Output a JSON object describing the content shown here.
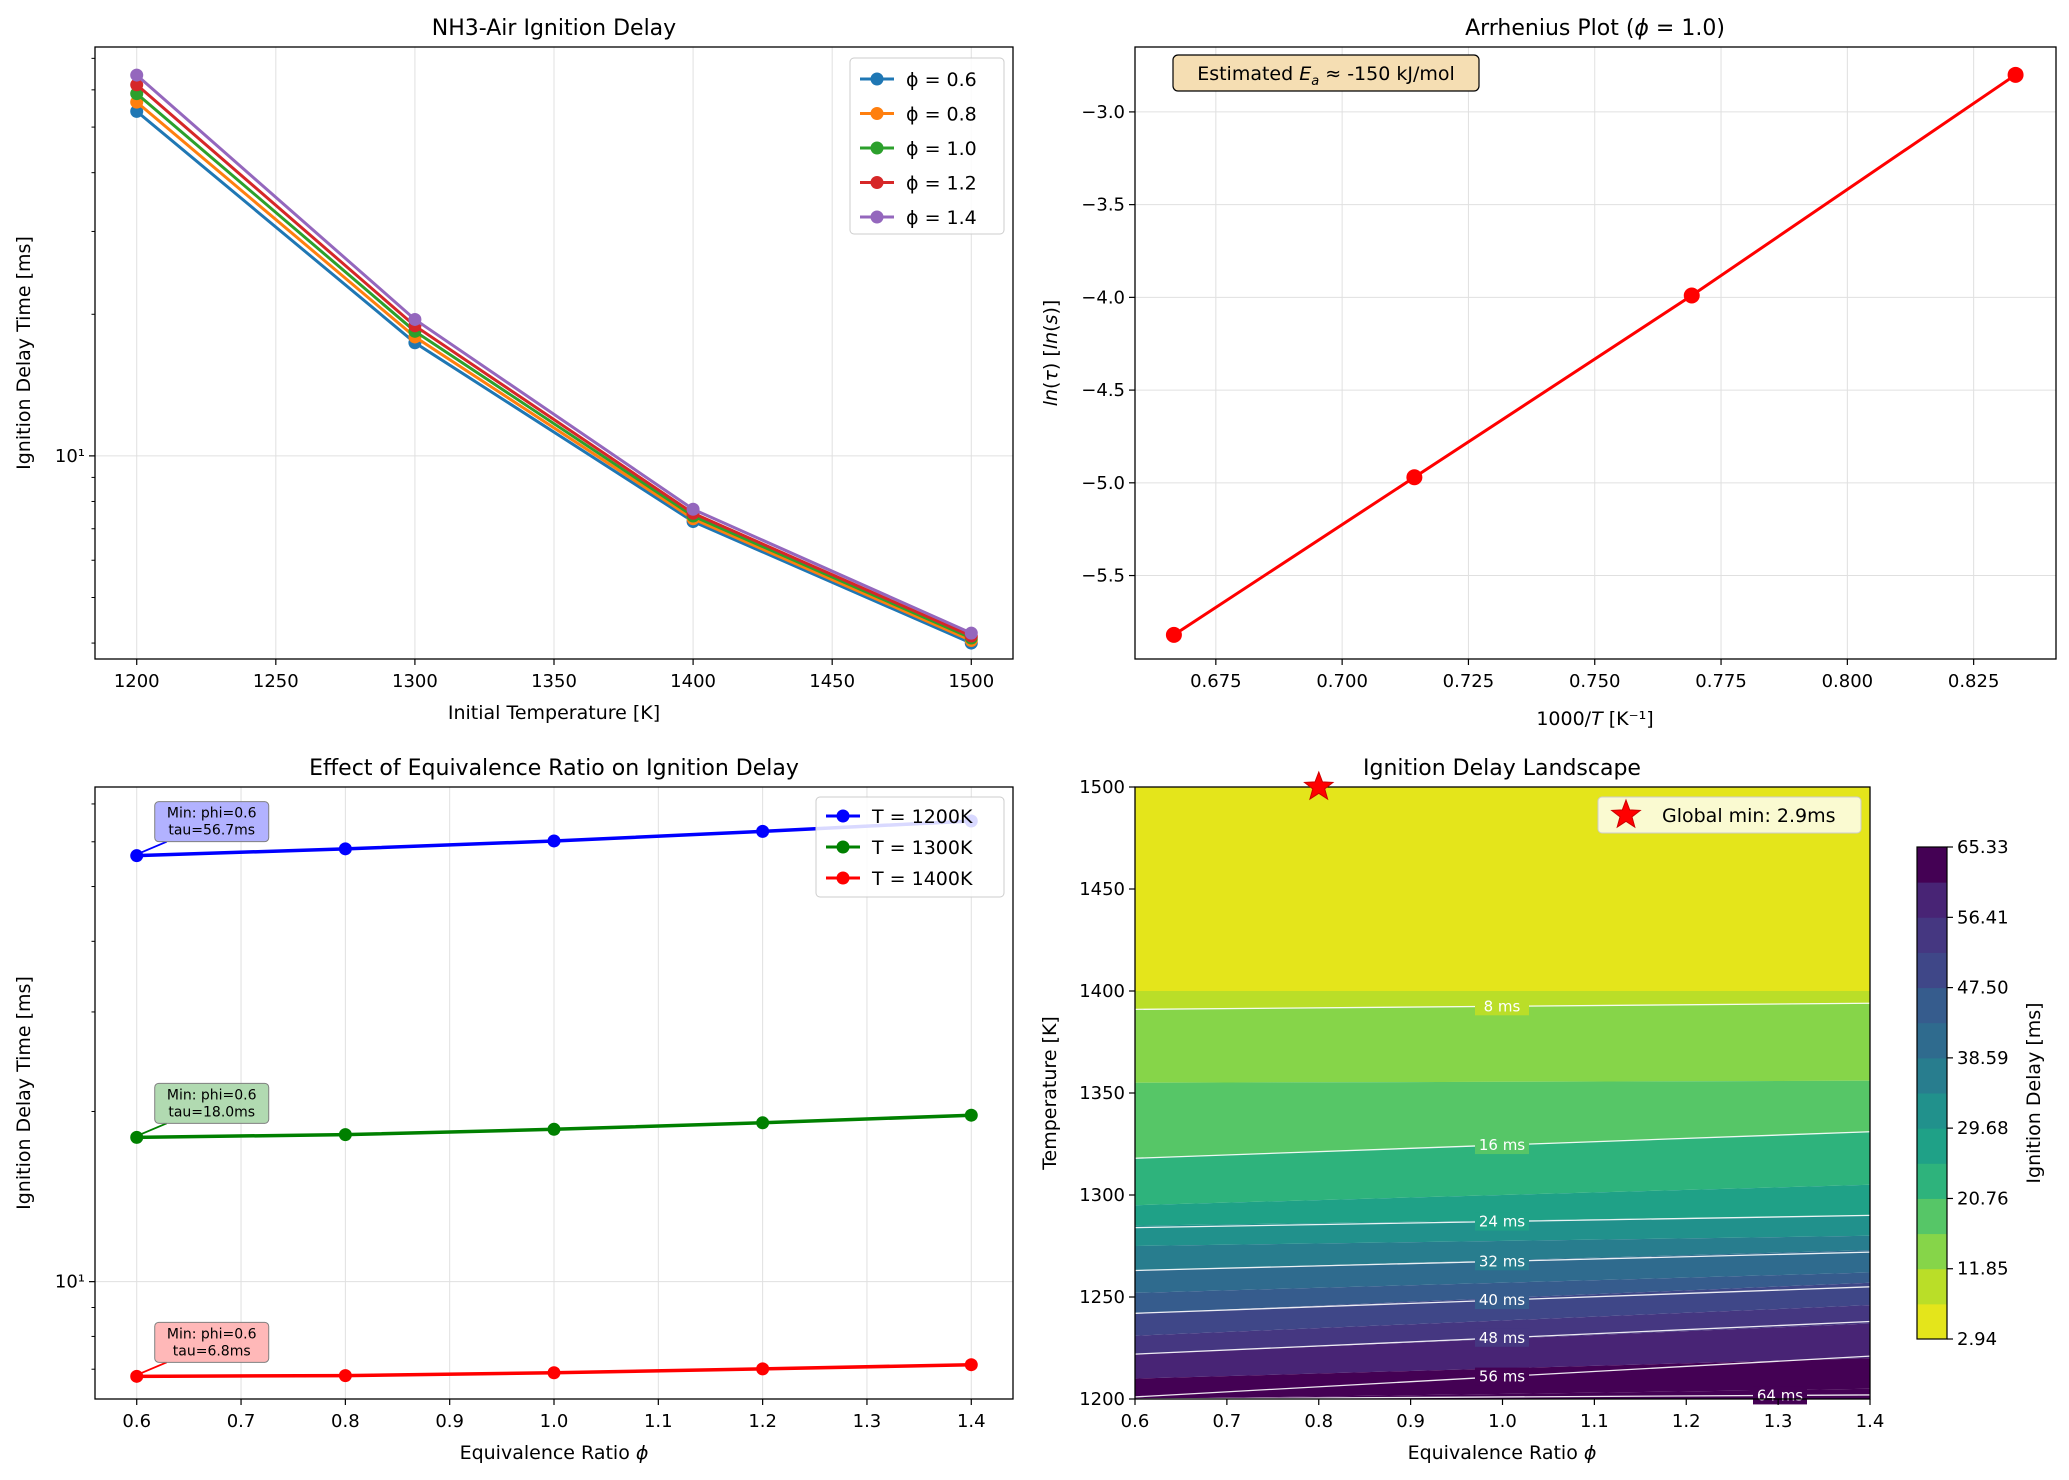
{
  "chart_data": [
    {
      "type": "line",
      "title": "NH3-Air Ignition Delay",
      "xlabel": "Initial Temperature [K]",
      "ylabel": "Ignition Delay Time [ms]",
      "yscale": "log",
      "xlim": [
        1185,
        1515
      ],
      "ylim": [
        3.7,
        74
      ],
      "grid": true,
      "legend_position": "top-right",
      "xticks": [
        1200,
        1250,
        1300,
        1350,
        1400,
        1450,
        1500
      ],
      "yticks": [
        {
          "value": 10,
          "label": "10¹"
        }
      ],
      "x": [
        1200,
        1300,
        1400,
        1500
      ],
      "series": [
        {
          "name": "ϕ = 0.6",
          "color": "#1f77b4",
          "values": [
            54.0,
            17.4,
            7.25,
            4.0
          ]
        },
        {
          "name": "ϕ = 0.8",
          "color": "#ff7f0e",
          "values": [
            56.5,
            17.9,
            7.35,
            4.05
          ]
        },
        {
          "name": "ϕ = 1.0",
          "color": "#2ca02c",
          "values": [
            58.9,
            18.4,
            7.45,
            4.1
          ]
        },
        {
          "name": "ϕ = 1.2",
          "color": "#d62728",
          "values": [
            61.5,
            18.9,
            7.55,
            4.14
          ]
        },
        {
          "name": "ϕ = 1.4",
          "color": "#9467bd",
          "values": [
            64.5,
            19.5,
            7.7,
            4.2
          ]
        }
      ]
    },
    {
      "type": "line",
      "title": "Arrhenius Plot (ϕ = 1.0)",
      "xlabel": "1000/T [K⁻¹]",
      "ylabel": "ln(τ) [ln(s)]",
      "xlim": [
        0.659,
        0.8413
      ],
      "ylim": [
        -5.95,
        -2.65
      ],
      "grid": true,
      "xticks": [
        0.675,
        0.7,
        0.725,
        0.75,
        0.775,
        0.8,
        0.825
      ],
      "yticks": [
        -5.5,
        -5.0,
        -4.5,
        -4.0,
        -3.5,
        -3.0
      ],
      "color": "#ff0000",
      "x": [
        0.6667,
        0.7143,
        0.7692,
        0.8333
      ],
      "y": [
        -5.82,
        -4.97,
        -3.99,
        -2.8
      ],
      "annotation": "Estimated Eₐ ≈ -150 kJ/mol"
    },
    {
      "type": "line",
      "title": "Effect of Equivalence Ratio on Ignition Delay",
      "xlabel": "Equivalence Ratio ϕ",
      "ylabel": "Ignition Delay Time [ms]",
      "yscale": "log",
      "xlim": [
        0.56,
        1.44
      ],
      "ylim": [
        6.2,
        75
      ],
      "grid": true,
      "legend_position": "top-right",
      "xticks": [
        0.6,
        0.7,
        0.8,
        0.9,
        1.0,
        1.1,
        1.2,
        1.3,
        1.4
      ],
      "yticks": [
        {
          "value": 10,
          "label": "10¹"
        }
      ],
      "x": [
        0.6,
        0.8,
        1.0,
        1.2,
        1.4
      ],
      "series": [
        {
          "name": "T = 1200K",
          "color": "#0000ff",
          "values": [
            56.7,
            58.3,
            60.2,
            62.6,
            65.3
          ],
          "annotation": "Min: phi=0.6\n tau=56.7ms",
          "box": "#aaaaff"
        },
        {
          "name": "T = 1300K",
          "color": "#008000",
          "values": [
            18.0,
            18.2,
            18.6,
            19.1,
            19.7
          ],
          "annotation": "Min: phi=0.6\n tau=18.0ms",
          "box": "#a9d6a9"
        },
        {
          "name": "T = 1400K",
          "color": "#ff0000",
          "values": [
            6.8,
            6.82,
            6.9,
            7.01,
            7.13
          ],
          "annotation": "Min: phi=0.6\n tau=6.8ms",
          "box": "#ffb0b0"
        }
      ]
    },
    {
      "type": "heatmap",
      "title": "Ignition Delay Landscape",
      "xlabel": "Equivalence Ratio ϕ",
      "ylabel": "Temperature [K]",
      "xlim": [
        0.6,
        1.4
      ],
      "ylim": [
        1200,
        1500
      ],
      "xticks": [
        0.6,
        0.7,
        0.8,
        0.9,
        1.0,
        1.1,
        1.2,
        1.3,
        1.4
      ],
      "yticks": [
        1200,
        1250,
        1300,
        1350,
        1400,
        1450,
        1500
      ],
      "colorbar": {
        "label": "Ignition Delay [ms]",
        "min": 2.94,
        "max": 65.33,
        "ticks": [
          "2.94",
          "11.85",
          "20.76",
          "29.68",
          "38.59",
          "47.50",
          "56.41",
          "65.33"
        ]
      },
      "contour_levels": [
        "8 ms",
        "16 ms",
        "24 ms",
        "32 ms",
        "40 ms",
        "48 ms",
        "56 ms",
        "64 ms"
      ],
      "global_min": {
        "label": "Global min: 2.9ms",
        "phi": 0.8,
        "T": 1500,
        "value": 2.9
      }
    }
  ]
}
